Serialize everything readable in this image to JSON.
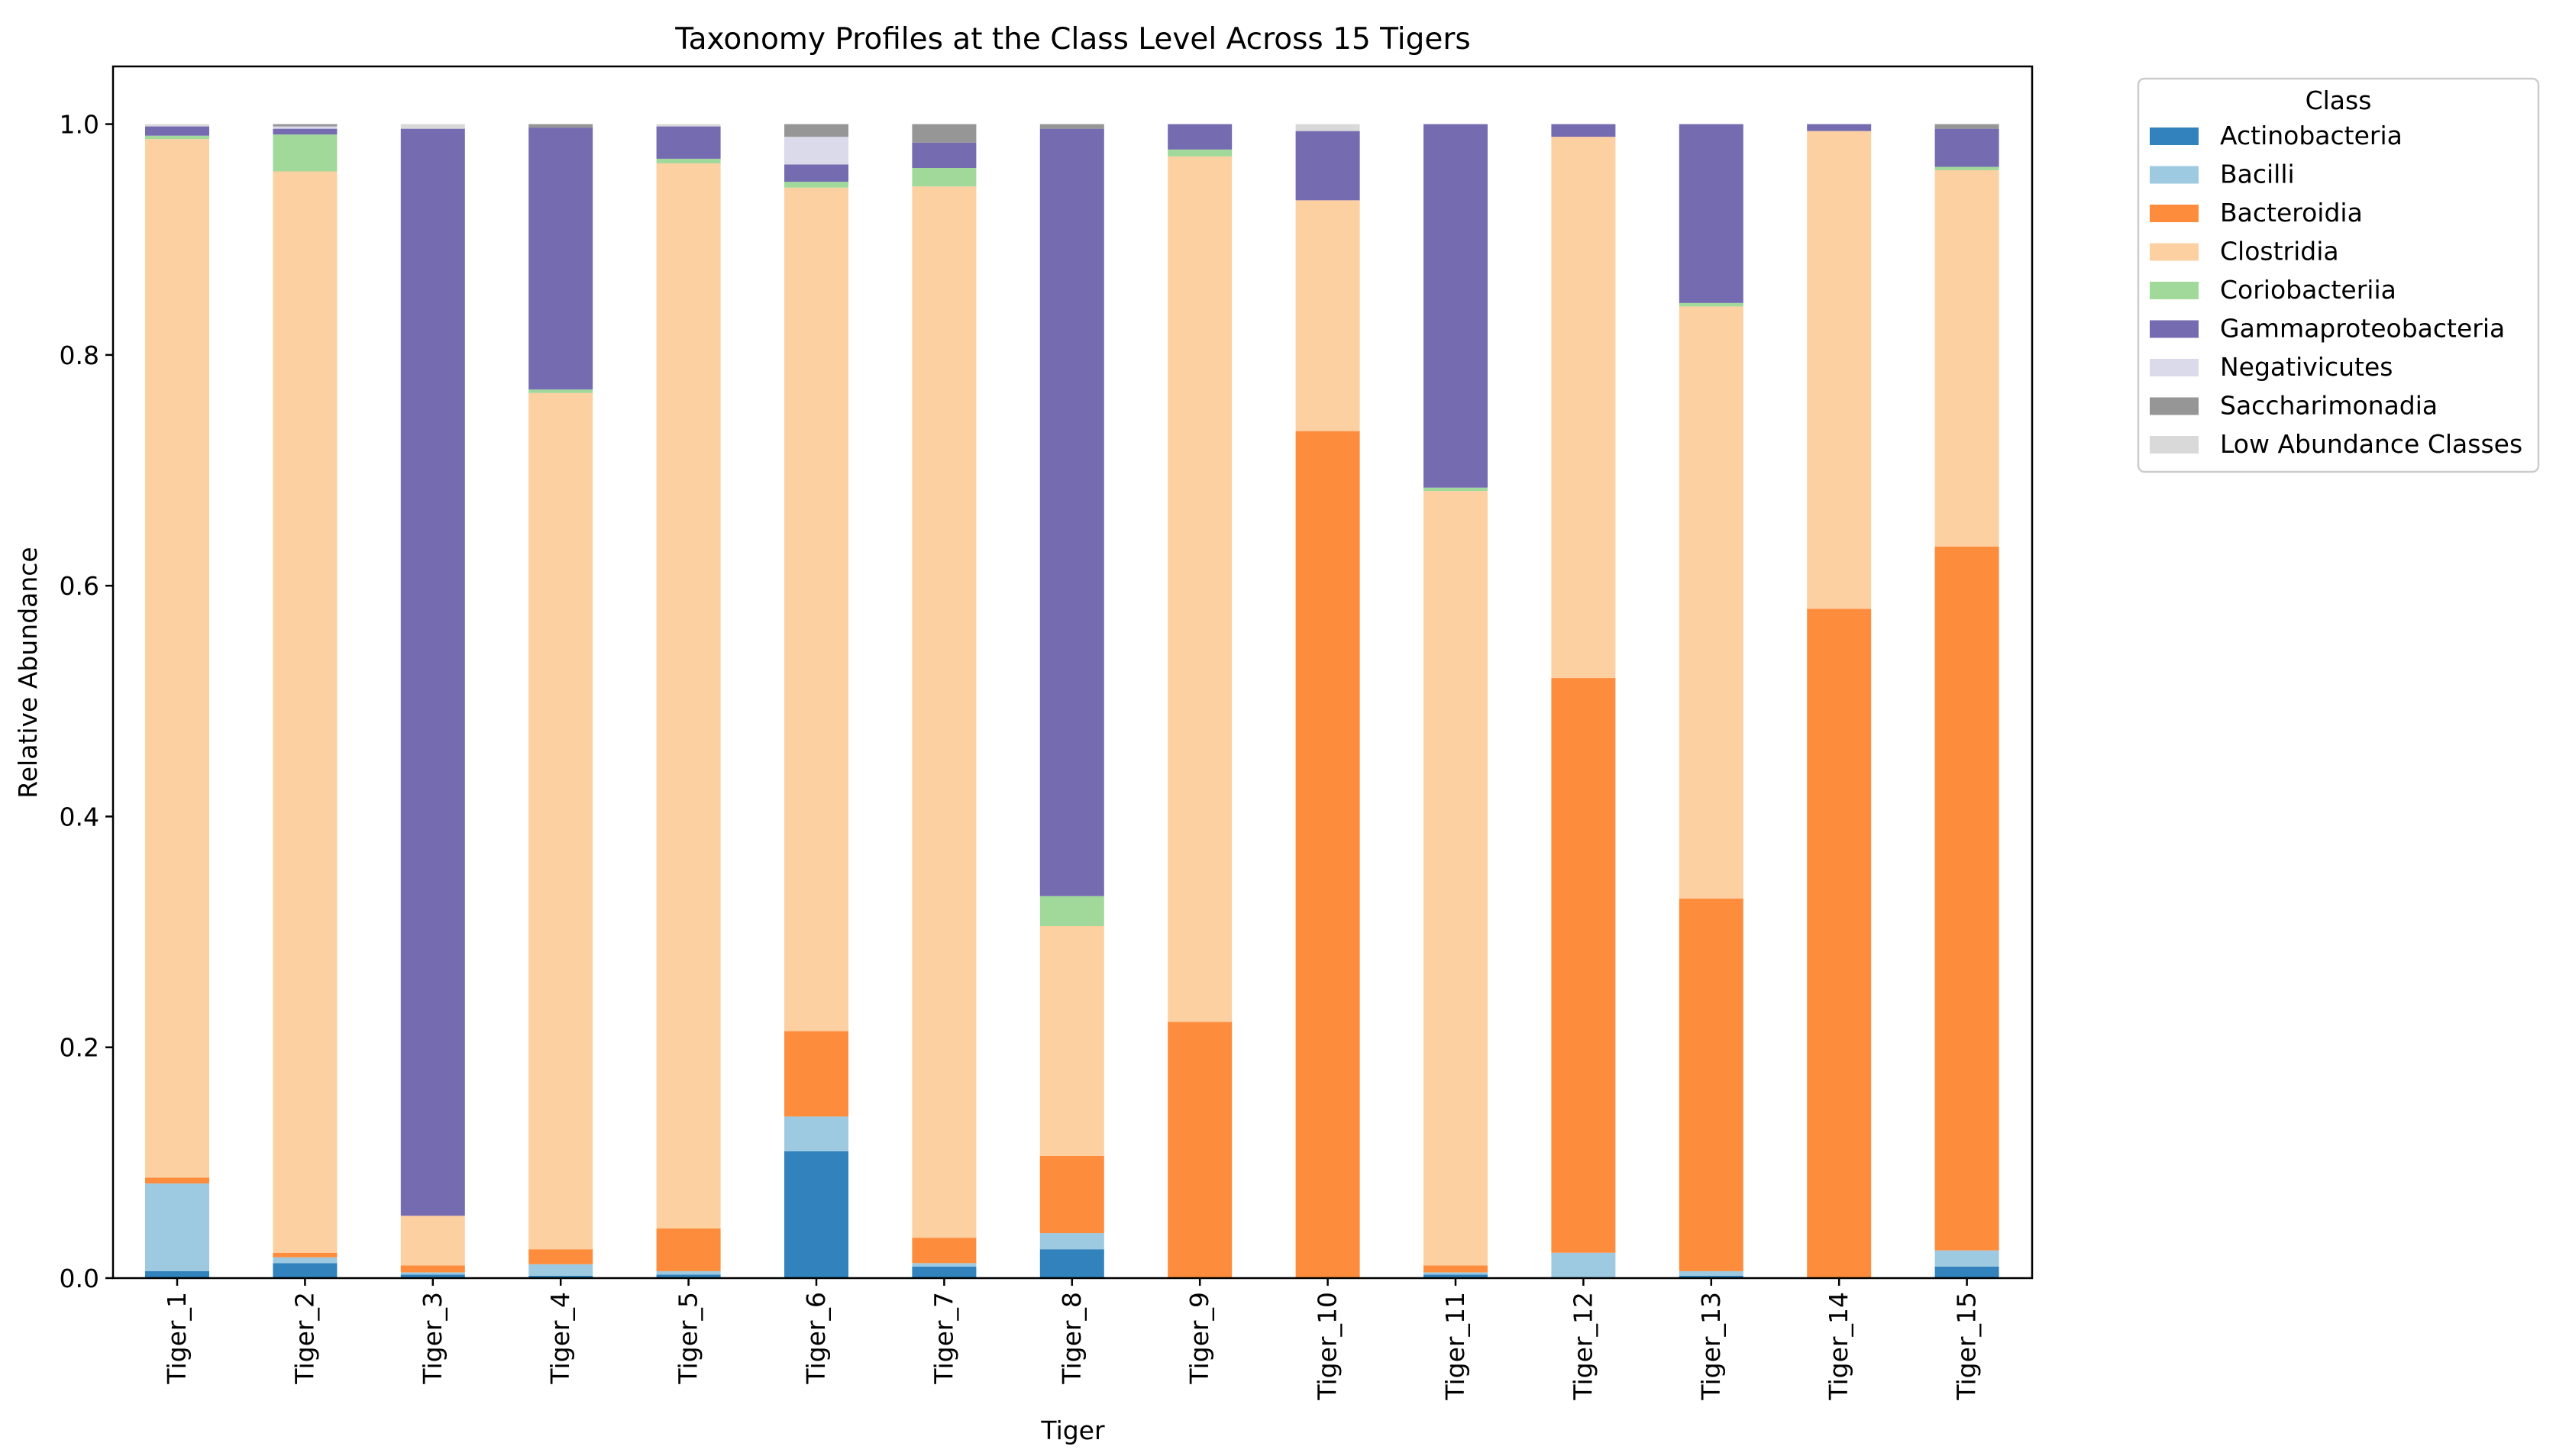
{
  "chart_data": {
    "type": "bar",
    "stacked": true,
    "title": "Taxonomy Profiles at the Class Level Across 15 Tigers",
    "xlabel": "Tiger",
    "ylabel": "Relative Abundance",
    "ylim": [
      0,
      1.05
    ],
    "yticks": [
      0.0,
      0.2,
      0.4,
      0.6,
      0.8,
      1.0
    ],
    "ytick_labels": [
      "0.0",
      "0.2",
      "0.4",
      "0.6",
      "0.8",
      "1.0"
    ],
    "grid": false,
    "categories": [
      "Tiger_1",
      "Tiger_2",
      "Tiger_3",
      "Tiger_4",
      "Tiger_5",
      "Tiger_6",
      "Tiger_7",
      "Tiger_8",
      "Tiger_9",
      "Tiger_10",
      "Tiger_11",
      "Tiger_12",
      "Tiger_13",
      "Tiger_14",
      "Tiger_15"
    ],
    "legend": {
      "title": "Class",
      "placement": "outside-upper-right"
    },
    "series": [
      {
        "name": "Actinobacteria",
        "color": "#3182bd",
        "values": [
          0.006,
          0.013,
          0.003,
          0.002,
          0.003,
          0.11,
          0.01,
          0.025,
          0.0,
          0.0,
          0.003,
          0.0,
          0.002,
          0.0,
          0.01
        ]
      },
      {
        "name": "Bacilli",
        "color": "#9ecae1",
        "values": [
          0.076,
          0.005,
          0.002,
          0.01,
          0.003,
          0.03,
          0.003,
          0.014,
          0.0,
          0.0,
          0.002,
          0.022,
          0.004,
          0.0,
          0.014
        ]
      },
      {
        "name": "Bacteroidia",
        "color": "#fd8d3c",
        "values": [
          0.005,
          0.004,
          0.006,
          0.013,
          0.037,
          0.074,
          0.022,
          0.067,
          0.222,
          0.734,
          0.006,
          0.498,
          0.323,
          0.58,
          0.61
        ]
      },
      {
        "name": "Clostridia",
        "color": "#fdd0a2",
        "values": [
          0.9,
          0.937,
          0.043,
          0.742,
          0.923,
          0.731,
          0.911,
          0.199,
          0.75,
          0.2,
          0.671,
          0.469,
          0.513,
          0.414,
          0.326
        ]
      },
      {
        "name": "Coriobacteriia",
        "color": "#a1d99b",
        "values": [
          0.003,
          0.032,
          0.0,
          0.003,
          0.004,
          0.005,
          0.016,
          0.026,
          0.006,
          0.0,
          0.003,
          0.0,
          0.003,
          0.0,
          0.003
        ]
      },
      {
        "name": "Gammaproteobacteria",
        "color": "#756bb1",
        "values": [
          0.008,
          0.005,
          0.942,
          0.227,
          0.028,
          0.015,
          0.022,
          0.665,
          0.022,
          0.06,
          0.315,
          0.011,
          0.155,
          0.006,
          0.033
        ]
      },
      {
        "name": "Negativicutes",
        "color": "#dadaeb",
        "values": [
          0.0,
          0.002,
          0.0,
          0.0,
          0.0,
          0.024,
          0.0,
          0.0,
          0.0,
          0.0,
          0.0,
          0.0,
          0.0,
          0.0,
          0.0
        ]
      },
      {
        "name": "Saccharimonadia",
        "color": "#969696",
        "values": [
          0.0,
          0.002,
          0.0,
          0.003,
          0.0,
          0.011,
          0.016,
          0.004,
          0.0,
          0.0,
          0.0,
          0.0,
          0.0,
          0.0,
          0.004
        ]
      },
      {
        "name": "Low Abundance Classes",
        "color": "#d9d9d9",
        "values": [
          0.002,
          0.0,
          0.004,
          0.0,
          0.002,
          0.0,
          0.0,
          0.0,
          0.0,
          0.006,
          0.0,
          0.0,
          0.0,
          0.0,
          0.0
        ]
      }
    ]
  }
}
